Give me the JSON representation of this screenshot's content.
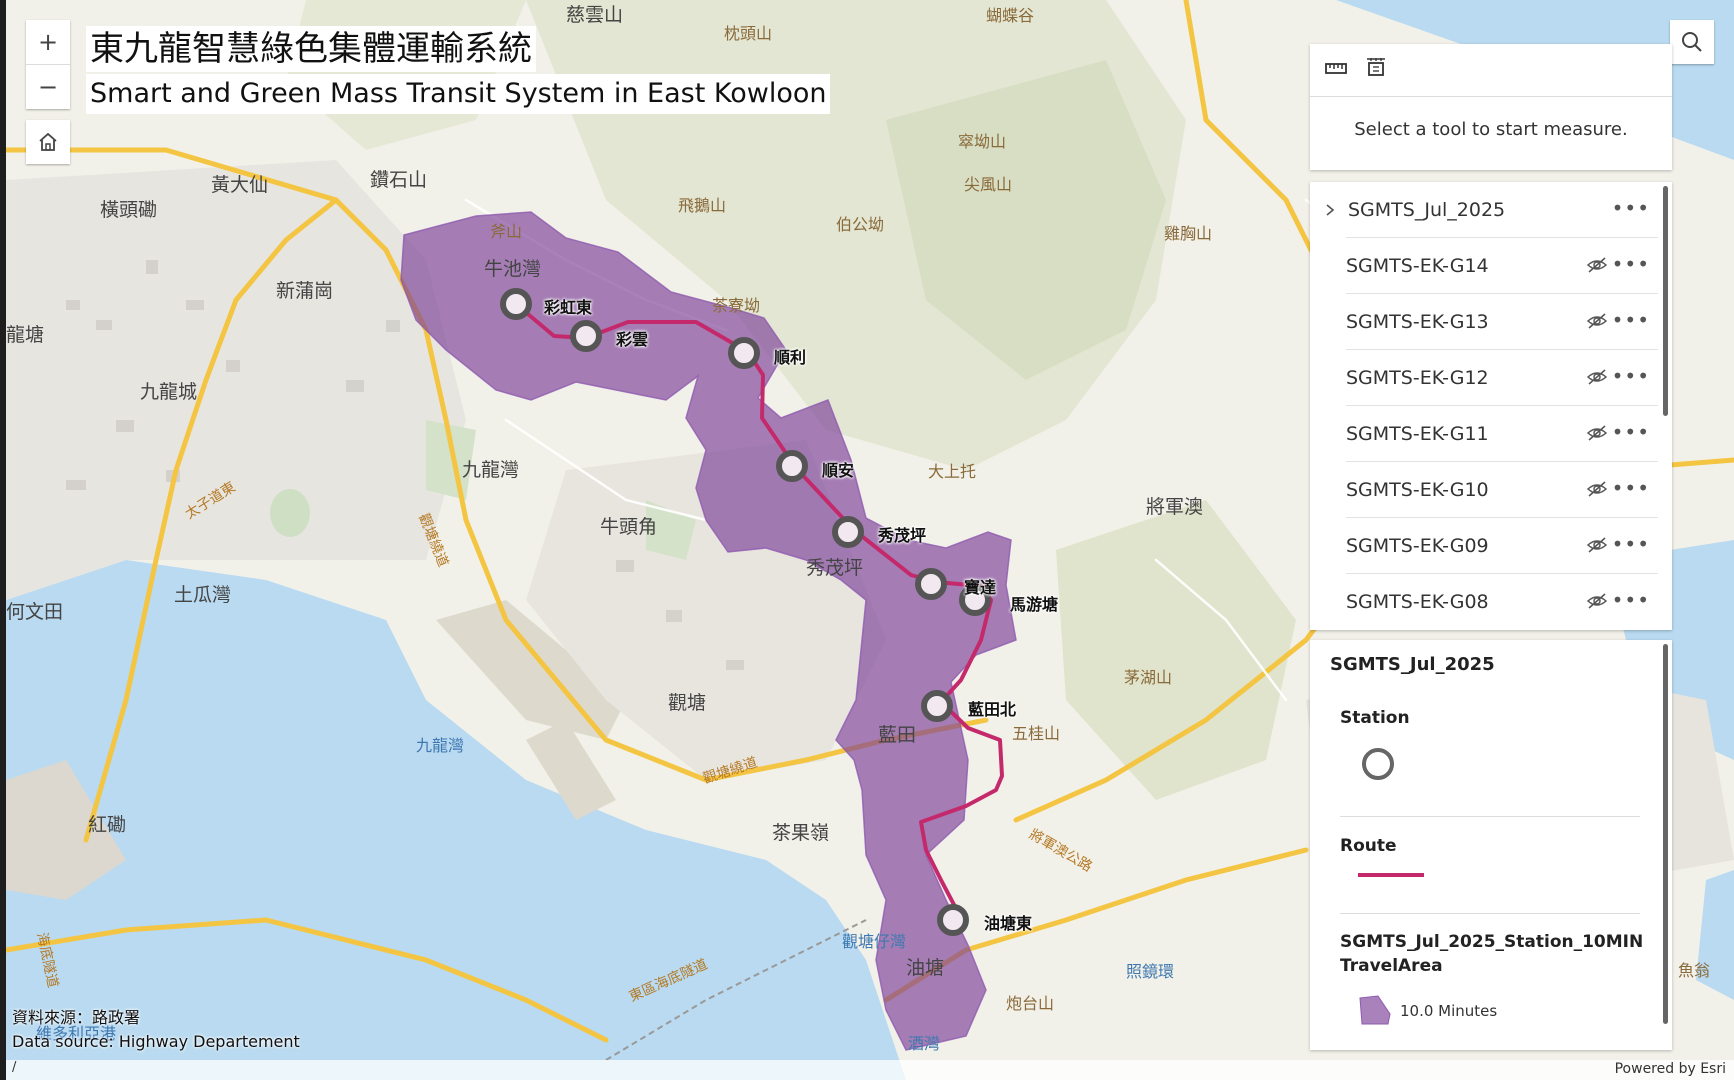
{
  "title": {
    "zh": "東九龍智慧綠色集體運輸系統",
    "en": "Smart and Green Mass Transit System in East Kowloon"
  },
  "controls": {
    "zoom_in": "+",
    "zoom_out": "−"
  },
  "measure": {
    "message": "Select a tool to start measure."
  },
  "layer_list": {
    "group": "SGMTS_Jul_2025",
    "children": [
      "SGMTS-EK-G14",
      "SGMTS-EK-G13",
      "SGMTS-EK-G12",
      "SGMTS-EK-G11",
      "SGMTS-EK-G10",
      "SGMTS-EK-G09",
      "SGMTS-EK-G08"
    ]
  },
  "legend": {
    "title": "SGMTS_Jul_2025",
    "station_label": "Station",
    "route_label": "Route",
    "area_title": "SGMTS_Jul_2025_Station_10MINTravelArea",
    "area_value": "10.0 Minutes",
    "route_color": "#c42a6b",
    "area_color": "#7b3f98"
  },
  "stations": [
    "彩虹東",
    "彩雲",
    "順利",
    "順安",
    "秀茂坪",
    "寶達",
    "馬游塘",
    "藍田北",
    "油塘東"
  ],
  "places": {
    "p1": "慈雲山",
    "p2": "黃大仙",
    "p3": "橫頭磡",
    "p4": "鑽石山",
    "p5": "新蒲崗",
    "p6": "牛池灣",
    "p7": "九龍城",
    "p8": "九龍灣",
    "p9": "牛頭角",
    "p10": "土瓜灣",
    "p11": "觀塘",
    "p12": "九龍灣",
    "p13": "紅磡",
    "p14": "茶果嶺",
    "p15": "藍田",
    "p16": "秀茂坪",
    "p17": "油塘",
    "p18": "觀塘仔灣",
    "p19": "將軍澳",
    "p20": "大上托",
    "p21": "茅湖山",
    "p22": "五桂山",
    "p23": "照鏡環",
    "p24": "炮台山",
    "p25": "維多利亞港",
    "p26": "酒灣",
    "p27": "龍塘",
    "p28": "何文田",
    "h1": "枕頭山",
    "h2": "飛鵝山",
    "h3": "伯公坳",
    "h4": "斧山",
    "h5": "茶寮坳",
    "h6": "尖風山",
    "h7": "雞胸山",
    "h8": "窣坳山",
    "h9": "蝴蝶谷",
    "h10": "魚翁",
    "r1": "太子道東",
    "r2": "觀塘繞道",
    "r3": "東區海底隧道",
    "r4": "觀塘繞道",
    "r5": "將軍澳公路",
    "r6": "海底隧道"
  },
  "source": {
    "zh": "資料來源：路政署",
    "en": "Data source: Highway Departement",
    "slash": "/"
  },
  "powered_by": "Powered by Esri"
}
